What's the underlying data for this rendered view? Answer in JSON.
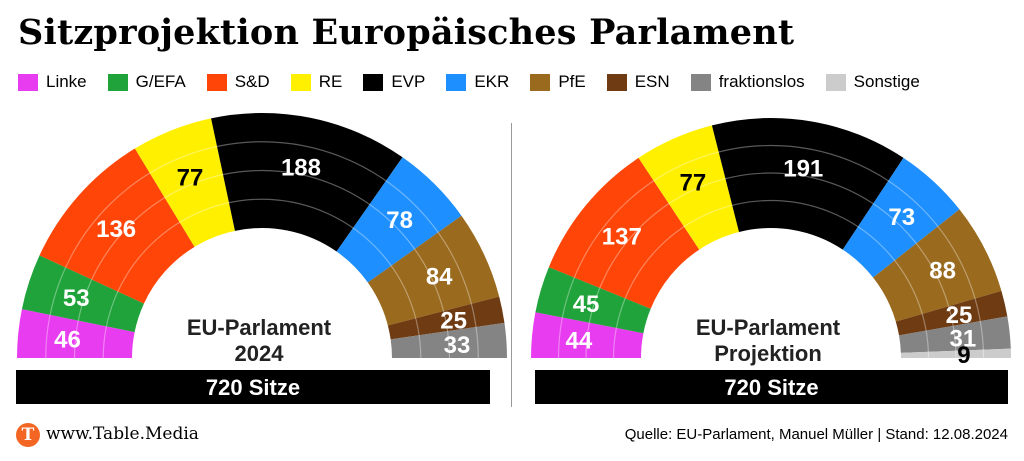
{
  "title": "Sitzprojektion Europäisches Parlament",
  "legend": [
    {
      "label": "Linke",
      "color": "#e83cf0"
    },
    {
      "label": "G/EFA",
      "color": "#1fa33a"
    },
    {
      "label": "S&D",
      "color": "#ff4507"
    },
    {
      "label": "RE",
      "color": "#fff000"
    },
    {
      "label": "EVP",
      "color": "#000000"
    },
    {
      "label": "EKR",
      "color": "#1e8ffe"
    },
    {
      "label": "PfE",
      "color": "#9a6a1e"
    },
    {
      "label": "ESN",
      "color": "#6e3b12"
    },
    {
      "label": "fraktionslos",
      "color": "#848484"
    },
    {
      "label": "Sonstige",
      "color": "#cccccc"
    }
  ],
  "chart_data": [
    {
      "type": "pie",
      "subtype": "parliament-hemicycle",
      "center_label_line1": "EU-Parlament",
      "center_label_line2": "2024",
      "total_label": "720 Sitze",
      "total": 720,
      "segments": [
        {
          "party": "Linke",
          "value": 46
        },
        {
          "party": "G/EFA",
          "value": 53
        },
        {
          "party": "S&D",
          "value": 136
        },
        {
          "party": "RE",
          "value": 77
        },
        {
          "party": "EVP",
          "value": 188
        },
        {
          "party": "EKR",
          "value": 78
        },
        {
          "party": "PfE",
          "value": 84
        },
        {
          "party": "ESN",
          "value": 25
        },
        {
          "party": "fraktionslos",
          "value": 33
        }
      ]
    },
    {
      "type": "pie",
      "subtype": "parliament-hemicycle",
      "center_label_line1": "EU-Parlament",
      "center_label_line2": "Projektion",
      "total_label": "720 Sitze",
      "total": 720,
      "segments": [
        {
          "party": "Linke",
          "value": 44
        },
        {
          "party": "G/EFA",
          "value": 45
        },
        {
          "party": "S&D",
          "value": 137
        },
        {
          "party": "RE",
          "value": 77
        },
        {
          "party": "EVP",
          "value": 191
        },
        {
          "party": "EKR",
          "value": 73
        },
        {
          "party": "PfE",
          "value": 88
        },
        {
          "party": "ESN",
          "value": 25
        },
        {
          "party": "fraktionslos",
          "value": 31
        },
        {
          "party": "Sonstige",
          "value": 9
        }
      ]
    }
  ],
  "footer": {
    "logo_letter": "T",
    "site": "www.Table.Media",
    "source": "Quelle: EU-Parlament, Manuel Müller | Stand: 12.08.2024"
  }
}
